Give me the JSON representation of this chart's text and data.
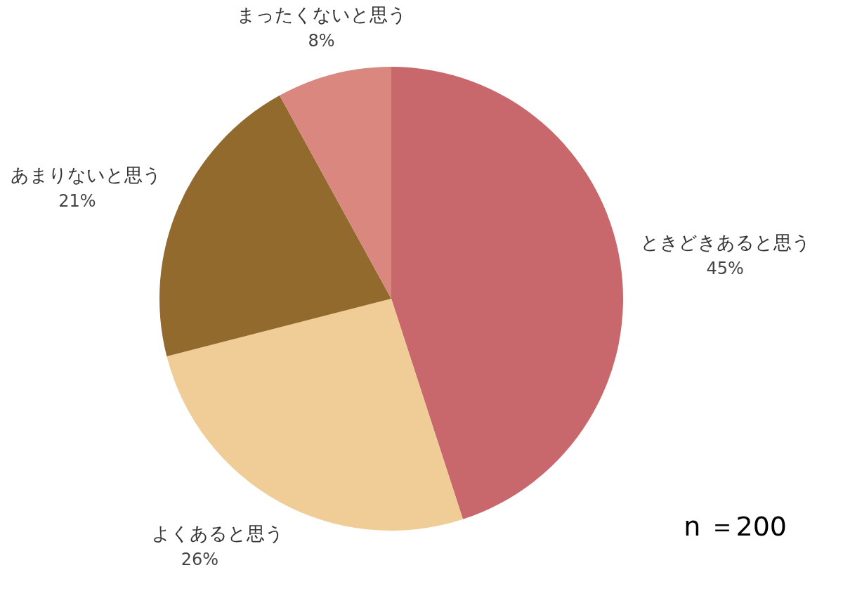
{
  "chart_data": {
    "type": "pie",
    "categories": [
      "ときどきあると思う",
      "よくあると思う",
      "あまりないと思う",
      "まったくないと思う"
    ],
    "values": [
      45,
      26,
      21,
      8
    ],
    "value_labels": [
      "45%",
      "26%",
      "21%",
      "8%"
    ],
    "colors": [
      "#c8686c",
      "#f0cd96",
      "#936a2e",
      "#d9877f"
    ],
    "annotations": [
      "n ＝200"
    ]
  }
}
